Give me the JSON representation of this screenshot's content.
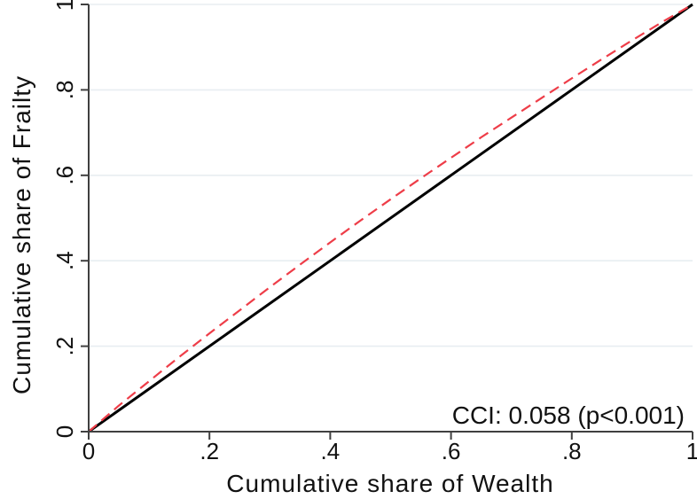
{
  "figure": {
    "background": "#ffffff"
  },
  "chart_data": {
    "type": "line",
    "title": "",
    "xlabel": "Cumulative share of Wealth",
    "ylabel": "Cumulative share of Frailty",
    "xlim": [
      0,
      1
    ],
    "ylim": [
      0,
      1
    ],
    "tick_values": [
      0,
      0.2,
      0.4,
      0.6,
      0.8,
      1
    ],
    "tick_labels": [
      "0",
      ".2",
      ".4",
      ".6",
      ".8",
      "1"
    ],
    "grid": "horizontal",
    "legend": "none",
    "colors": {
      "gridline": "#e8eef1",
      "axis": "#404040",
      "text": "#111111"
    },
    "annotation": {
      "text": "CCI: 0.058 (p<0.001)",
      "x": 0.985,
      "y": 0.02,
      "align": "right"
    },
    "series": [
      {
        "name": "line-of-equality",
        "style": "solid",
        "color": "#000000",
        "width": 3,
        "x": [
          0,
          1
        ],
        "y": [
          0,
          1
        ]
      },
      {
        "name": "concentration-curve",
        "style": "dashed",
        "color": "#ee3d48",
        "width": 2.2,
        "x": [
          0,
          0.05,
          0.1,
          0.15,
          0.2,
          0.25,
          0.3,
          0.35,
          0.4,
          0.45,
          0.5,
          0.55,
          0.6,
          0.65,
          0.7,
          0.75,
          0.8,
          0.85,
          0.9,
          0.95,
          1
        ],
        "y": [
          0,
          0.061,
          0.118,
          0.175,
          0.23,
          0.284,
          0.338,
          0.391,
          0.443,
          0.494,
          0.544,
          0.593,
          0.641,
          0.689,
          0.735,
          0.781,
          0.827,
          0.872,
          0.916,
          0.959,
          1
        ]
      }
    ]
  }
}
